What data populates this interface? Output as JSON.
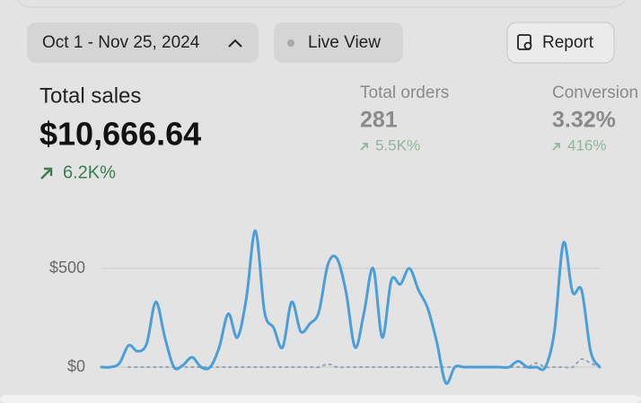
{
  "header": {
    "date_range": "Oct 1 - Nov 25, 2024",
    "live_view": "Live View",
    "report": "Report"
  },
  "metrics": [
    {
      "label": "Total sales",
      "value": "$10,666.64",
      "change": "6.2K%"
    },
    {
      "label": "Total orders",
      "value": "281",
      "change": "5.5K%"
    },
    {
      "label": "Conversion",
      "value": "3.32%",
      "change": "416%"
    }
  ],
  "chart_data": {
    "type": "line",
    "categories": [
      null,
      null,
      null,
      null,
      null,
      null,
      null,
      null,
      null,
      null,
      null,
      null,
      null,
      null,
      null,
      null,
      null,
      null,
      null,
      null,
      null,
      null,
      null,
      null,
      null,
      null,
      null,
      null,
      null,
      null,
      null,
      null,
      null,
      null,
      null,
      null,
      null,
      null,
      null,
      null,
      null,
      null,
      null,
      null,
      null,
      null,
      null,
      null,
      null,
      null,
      null,
      null,
      null,
      null,
      null,
      null
    ],
    "series": [
      {
        "color": "#4a9fd8",
        "style": "solid",
        "values": [
          0,
          0,
          20,
          110,
          80,
          120,
          330,
          150,
          0,
          10,
          50,
          0,
          0,
          100,
          270,
          150,
          350,
          690,
          280,
          200,
          100,
          330,
          180,
          220,
          280,
          520,
          550,
          380,
          100,
          280,
          500,
          150,
          440,
          420,
          500,
          390,
          300,
          130,
          -80,
          0,
          0,
          0,
          0,
          0,
          0,
          0,
          30,
          0,
          0,
          0,
          180,
          630,
          380,
          390,
          80,
          0
        ]
      },
      {
        "color": "#8fa3b8",
        "style": "dotted",
        "values": [
          null,
          null,
          null,
          0,
          0,
          0,
          0,
          0,
          0,
          0,
          0,
          0,
          0,
          0,
          0,
          0,
          0,
          0,
          0,
          0,
          0,
          0,
          0,
          0,
          0,
          15,
          0,
          0,
          0,
          0,
          0,
          0,
          0,
          0,
          0,
          0,
          0,
          0,
          0,
          0,
          0,
          0,
          0,
          0,
          0,
          0,
          0,
          0,
          20,
          0,
          0,
          0,
          0,
          40,
          20,
          0
        ]
      }
    ],
    "ylim": [
      -100,
      750
    ],
    "yticks": [
      {
        "value": 0,
        "label": "$0"
      },
      {
        "value": 500,
        "label": "$500"
      }
    ],
    "grid": true
  }
}
